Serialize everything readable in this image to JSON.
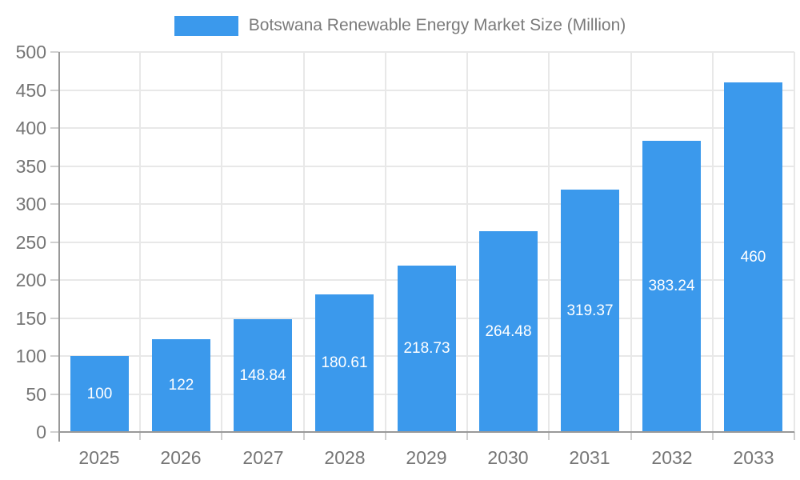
{
  "chart_data": {
    "type": "bar",
    "title": "Botswana Renewable Energy Market Size (Million)",
    "categories": [
      "2025",
      "2026",
      "2027",
      "2028",
      "2029",
      "2030",
      "2031",
      "2032",
      "2033"
    ],
    "values": [
      100,
      122,
      148.84,
      180.61,
      218.73,
      264.48,
      319.37,
      383.24,
      460
    ],
    "value_labels": [
      "100",
      "122",
      "148.84",
      "180.61",
      "218.73",
      "264.48",
      "319.37",
      "383.24",
      "460"
    ],
    "series_name": "Botswana Renewable Energy Market Size (Million)",
    "xlabel": "",
    "ylabel": "",
    "ylim": [
      0,
      500
    ],
    "ytick_step": 50,
    "ytick_labels": [
      "0",
      "50",
      "100",
      "150",
      "200",
      "250",
      "300",
      "350",
      "400",
      "450",
      "500"
    ],
    "grid": true,
    "legend_position": "top-center",
    "colors": {
      "bar": "#3b99ec",
      "axis_line": "#999999",
      "grid_line": "#e8e8e8",
      "tick": "#d0d0d0",
      "axis_text": "#757575",
      "title_text": "#7a7a7a",
      "bar_label_text": "#ffffff",
      "background": "#ffffff"
    }
  }
}
